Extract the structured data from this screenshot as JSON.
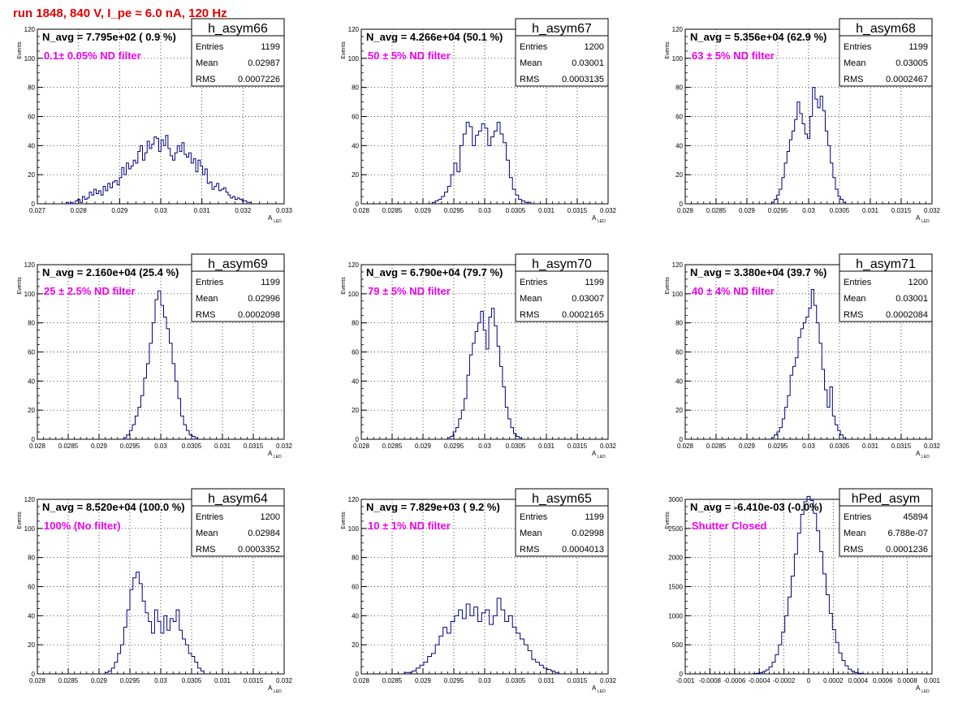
{
  "run_title": "run 1848,   840 V, I_pe ≈ 6.0 nA, 120 Hz",
  "axis_labels": {
    "x_main": "A",
    "x_sub": "LED",
    "y": "Events"
  },
  "stats_labels": {
    "entries": "Entries",
    "mean": "Mean",
    "rms": "RMS"
  },
  "colors": {
    "histogram": "#000080",
    "annotation": "#ee00ee",
    "title": "#e00000",
    "grid": "#000000"
  },
  "chart_data": [
    {
      "type": "histogram",
      "name": "h_asym66",
      "navg": "N_avg = 7.795e+02 ( 0.9 %)",
      "annotation": "0.1± 0.05% ND filter",
      "stats": {
        "entries": "1199",
        "mean": "0.02987",
        "rms": "0.0007226"
      },
      "xlim": [
        0.027,
        0.033
      ],
      "ylim": [
        0,
        120
      ],
      "xticks": [
        "0.027",
        "0.028",
        "0.029",
        "0.03",
        "0.031",
        "0.032",
        "0.033"
      ],
      "yticks": [
        "0",
        "20",
        "40",
        "60",
        "80",
        "100",
        "120"
      ],
      "x_range_filled": [
        0.0277,
        0.0322
      ],
      "bin_values": [
        1,
        0,
        1,
        0,
        2,
        3,
        1,
        5,
        3,
        4,
        8,
        6,
        10,
        7,
        9,
        6,
        12,
        9,
        14,
        11,
        15,
        16,
        13,
        18,
        25,
        20,
        28,
        24,
        26,
        30,
        28,
        36,
        40,
        30,
        35,
        43,
        38,
        41,
        46,
        45,
        36,
        44,
        40,
        47,
        38,
        33,
        30,
        35,
        40,
        36,
        42,
        34,
        32,
        35,
        28,
        31,
        22,
        30,
        26,
        20,
        24,
        14,
        15,
        10,
        12,
        14,
        9,
        10,
        11,
        8,
        6,
        4,
        5,
        3,
        4,
        3,
        2,
        2,
        1,
        1
      ]
    },
    {
      "type": "histogram",
      "name": "h_asym67",
      "navg": "N_avg = 4.266e+04 (50.1 %)",
      "annotation": " 50 ± 5% ND filter",
      "stats": {
        "entries": "1200",
        "mean": "0.03001",
        "rms": "0.0003135"
      },
      "xlim": [
        0.028,
        0.032
      ],
      "ylim": [
        0,
        120
      ],
      "xticks": [
        "0.028",
        "0.0285",
        "0.029",
        "0.0295",
        "0.03",
        "0.0305",
        "0.031",
        "0.0315",
        "0.032"
      ],
      "yticks": [
        "0",
        "20",
        "40",
        "60",
        "80",
        "100",
        "120"
      ],
      "x_range_filled": [
        0.02915,
        0.03075
      ],
      "bin_values": [
        1,
        2,
        3,
        5,
        8,
        12,
        20,
        28,
        22,
        40,
        48,
        56,
        53,
        40,
        47,
        50,
        55,
        52,
        40,
        46,
        50,
        56,
        48,
        42,
        30,
        18,
        10,
        6,
        3,
        2,
        1,
        1
      ]
    },
    {
      "type": "histogram",
      "name": "h_asym68",
      "navg": "N_avg = 5.356e+04 (62.9 %)",
      "annotation": " 63 ± 5% ND filter",
      "stats": {
        "entries": "1199",
        "mean": "0.03005",
        "rms": "0.0002467"
      },
      "xlim": [
        0.028,
        0.032
      ],
      "ylim": [
        0,
        120
      ],
      "xticks": [
        "0.028",
        "0.0285",
        "0.029",
        "0.0295",
        "0.03",
        "0.0305",
        "0.031",
        "0.0315",
        "0.032"
      ],
      "yticks": [
        "0",
        "20",
        "40",
        "60",
        "80",
        "100",
        "120"
      ],
      "x_range_filled": [
        0.0294,
        0.0306
      ],
      "bin_values": [
        1,
        3,
        6,
        10,
        18,
        28,
        36,
        44,
        50,
        58,
        70,
        62,
        55,
        48,
        45,
        60,
        80,
        72,
        66,
        74,
        64,
        50,
        40,
        28,
        18,
        10,
        5,
        3,
        1
      ]
    },
    {
      "type": "histogram",
      "name": "h_asym69",
      "navg": "N_avg = 2.160e+04 (25.4 %)",
      "annotation": " 25 ± 2.5% ND filter",
      "stats": {
        "entries": "1199",
        "mean": "0.02996",
        "rms": "0.0002098"
      },
      "xlim": [
        0.028,
        0.032
      ],
      "ylim": [
        0,
        120
      ],
      "xticks": [
        "0.028",
        "0.0285",
        "0.029",
        "0.0295",
        "0.03",
        "0.0305",
        "0.031",
        "0.0315",
        "0.032"
      ],
      "yticks": [
        "0",
        "20",
        "40",
        "60",
        "80",
        "100",
        "120"
      ],
      "x_range_filled": [
        0.0294,
        0.0306
      ],
      "bin_values": [
        1,
        3,
        6,
        10,
        16,
        22,
        30,
        42,
        52,
        66,
        80,
        96,
        102,
        92,
        84,
        76,
        66,
        52,
        40,
        28,
        16,
        10,
        6,
        3,
        2,
        1
      ]
    },
    {
      "type": "histogram",
      "name": "h_asym70",
      "navg": "N_avg = 6.790e+04 (79.7 %)",
      "annotation": " 79 ± 5% ND filter",
      "stats": {
        "entries": "1199",
        "mean": "0.03007",
        "rms": "0.0002165"
      },
      "xlim": [
        0.028,
        0.032
      ],
      "ylim": [
        0,
        120
      ],
      "xticks": [
        "0.028",
        "0.0285",
        "0.029",
        "0.0295",
        "0.03",
        "0.0305",
        "0.031",
        "0.0315",
        "0.032"
      ],
      "yticks": [
        "0",
        "20",
        "40",
        "60",
        "80",
        "100",
        "120"
      ],
      "x_range_filled": [
        0.0294,
        0.0306
      ],
      "bin_values": [
        1,
        2,
        5,
        8,
        14,
        20,
        28,
        44,
        58,
        66,
        74,
        80,
        88,
        75,
        62,
        84,
        90,
        78,
        64,
        50,
        36,
        22,
        14,
        8,
        4,
        2,
        1
      ]
    },
    {
      "type": "histogram",
      "name": "h_asym71",
      "navg": "N_avg = 3.380e+04 (39.7 %)",
      "annotation": " 40 ± 4% ND filter",
      "stats": {
        "entries": "1200",
        "mean": "0.03001",
        "rms": "0.0002084"
      },
      "xlim": [
        0.028,
        0.032
      ],
      "ylim": [
        0,
        120
      ],
      "xticks": [
        "0.028",
        "0.0285",
        "0.029",
        "0.0295",
        "0.03",
        "0.0305",
        "0.031",
        "0.0315",
        "0.032"
      ],
      "yticks": [
        "0",
        "20",
        "40",
        "60",
        "80",
        "100",
        "120"
      ],
      "x_range_filled": [
        0.0294,
        0.0306
      ],
      "bin_values": [
        1,
        3,
        5,
        8,
        14,
        22,
        30,
        44,
        50,
        56,
        70,
        76,
        80,
        84,
        90,
        103,
        92,
        80,
        66,
        48,
        34,
        22,
        36,
        16,
        10,
        6,
        3,
        1
      ]
    },
    {
      "type": "histogram",
      "name": "h_asym64",
      "navg": "N_avg = 8.520e+04 (100.0 %)",
      "annotation": " 100% (No filter)",
      "stats": {
        "entries": "1200",
        "mean": "0.02984",
        "rms": "0.0003352"
      },
      "xlim": [
        0.028,
        0.032
      ],
      "ylim": [
        0,
        120
      ],
      "xticks": [
        "0.028",
        "0.0285",
        "0.029",
        "0.0295",
        "0.03",
        "0.0305",
        "0.031",
        "0.0315",
        "0.032"
      ],
      "yticks": [
        "0",
        "20",
        "40",
        "60",
        "80",
        "100",
        "120"
      ],
      "x_range_filled": [
        0.0291,
        0.0307
      ],
      "bin_values": [
        1,
        2,
        4,
        8,
        14,
        20,
        32,
        44,
        58,
        66,
        70,
        62,
        50,
        42,
        36,
        28,
        44,
        36,
        28,
        40,
        30,
        38,
        36,
        44,
        30,
        24,
        20,
        14,
        12,
        8,
        4,
        2
      ]
    },
    {
      "type": "histogram",
      "name": "h_asym65",
      "navg": "N_avg = 7.829e+03 ( 9.2 %)",
      "annotation": "10 ± 1% ND filter",
      "stats": {
        "entries": "1199",
        "mean": "0.02998",
        "rms": "0.0004013"
      },
      "xlim": [
        0.028,
        0.032
      ],
      "ylim": [
        0,
        120
      ],
      "xticks": [
        "0.028",
        "0.0285",
        "0.029",
        "0.0295",
        "0.03",
        "0.0305",
        "0.031",
        "0.0315",
        "0.032"
      ],
      "yticks": [
        "0",
        "20",
        "40",
        "60",
        "80",
        "100",
        "120"
      ],
      "x_range_filled": [
        0.0287,
        0.0312
      ],
      "bin_values": [
        1,
        1,
        2,
        4,
        6,
        8,
        12,
        14,
        20,
        26,
        32,
        28,
        36,
        40,
        44,
        38,
        48,
        40,
        46,
        36,
        42,
        44,
        34,
        40,
        52,
        44,
        36,
        40,
        32,
        28,
        24,
        20,
        16,
        10,
        8,
        6,
        4,
        3,
        2,
        1
      ]
    },
    {
      "type": "histogram",
      "name": "hPed_asym",
      "navg": "N_avg = -6.410e-03 (-0.0%)",
      "annotation": "Shutter Closed",
      "stats": {
        "entries": "45894",
        "mean": "6.788e-07",
        "rms": "0.0001236"
      },
      "xlim": [
        -0.001,
        0.001
      ],
      "ylim": [
        0,
        3000
      ],
      "xticks": [
        "-0.001",
        "-0.0008",
        "-0.0006",
        "-0.0004",
        "-0.0002",
        "0",
        "0.0002",
        "0.0004",
        "0.0006",
        "0.0008",
        "0.001"
      ],
      "yticks": [
        "0",
        "500",
        "1000",
        "1500",
        "2000",
        "2500",
        "3000"
      ],
      "x_range_filled": [
        -0.00045,
        0.00045
      ],
      "bin_values": [
        5,
        10,
        20,
        40,
        70,
        120,
        200,
        330,
        500,
        720,
        1000,
        1320,
        1680,
        2060,
        2420,
        2740,
        2960,
        3050,
        2980,
        2760,
        2460,
        2100,
        1720,
        1360,
        1040,
        760,
        540,
        360,
        230,
        140,
        80,
        45,
        22,
        10,
        5
      ]
    }
  ]
}
